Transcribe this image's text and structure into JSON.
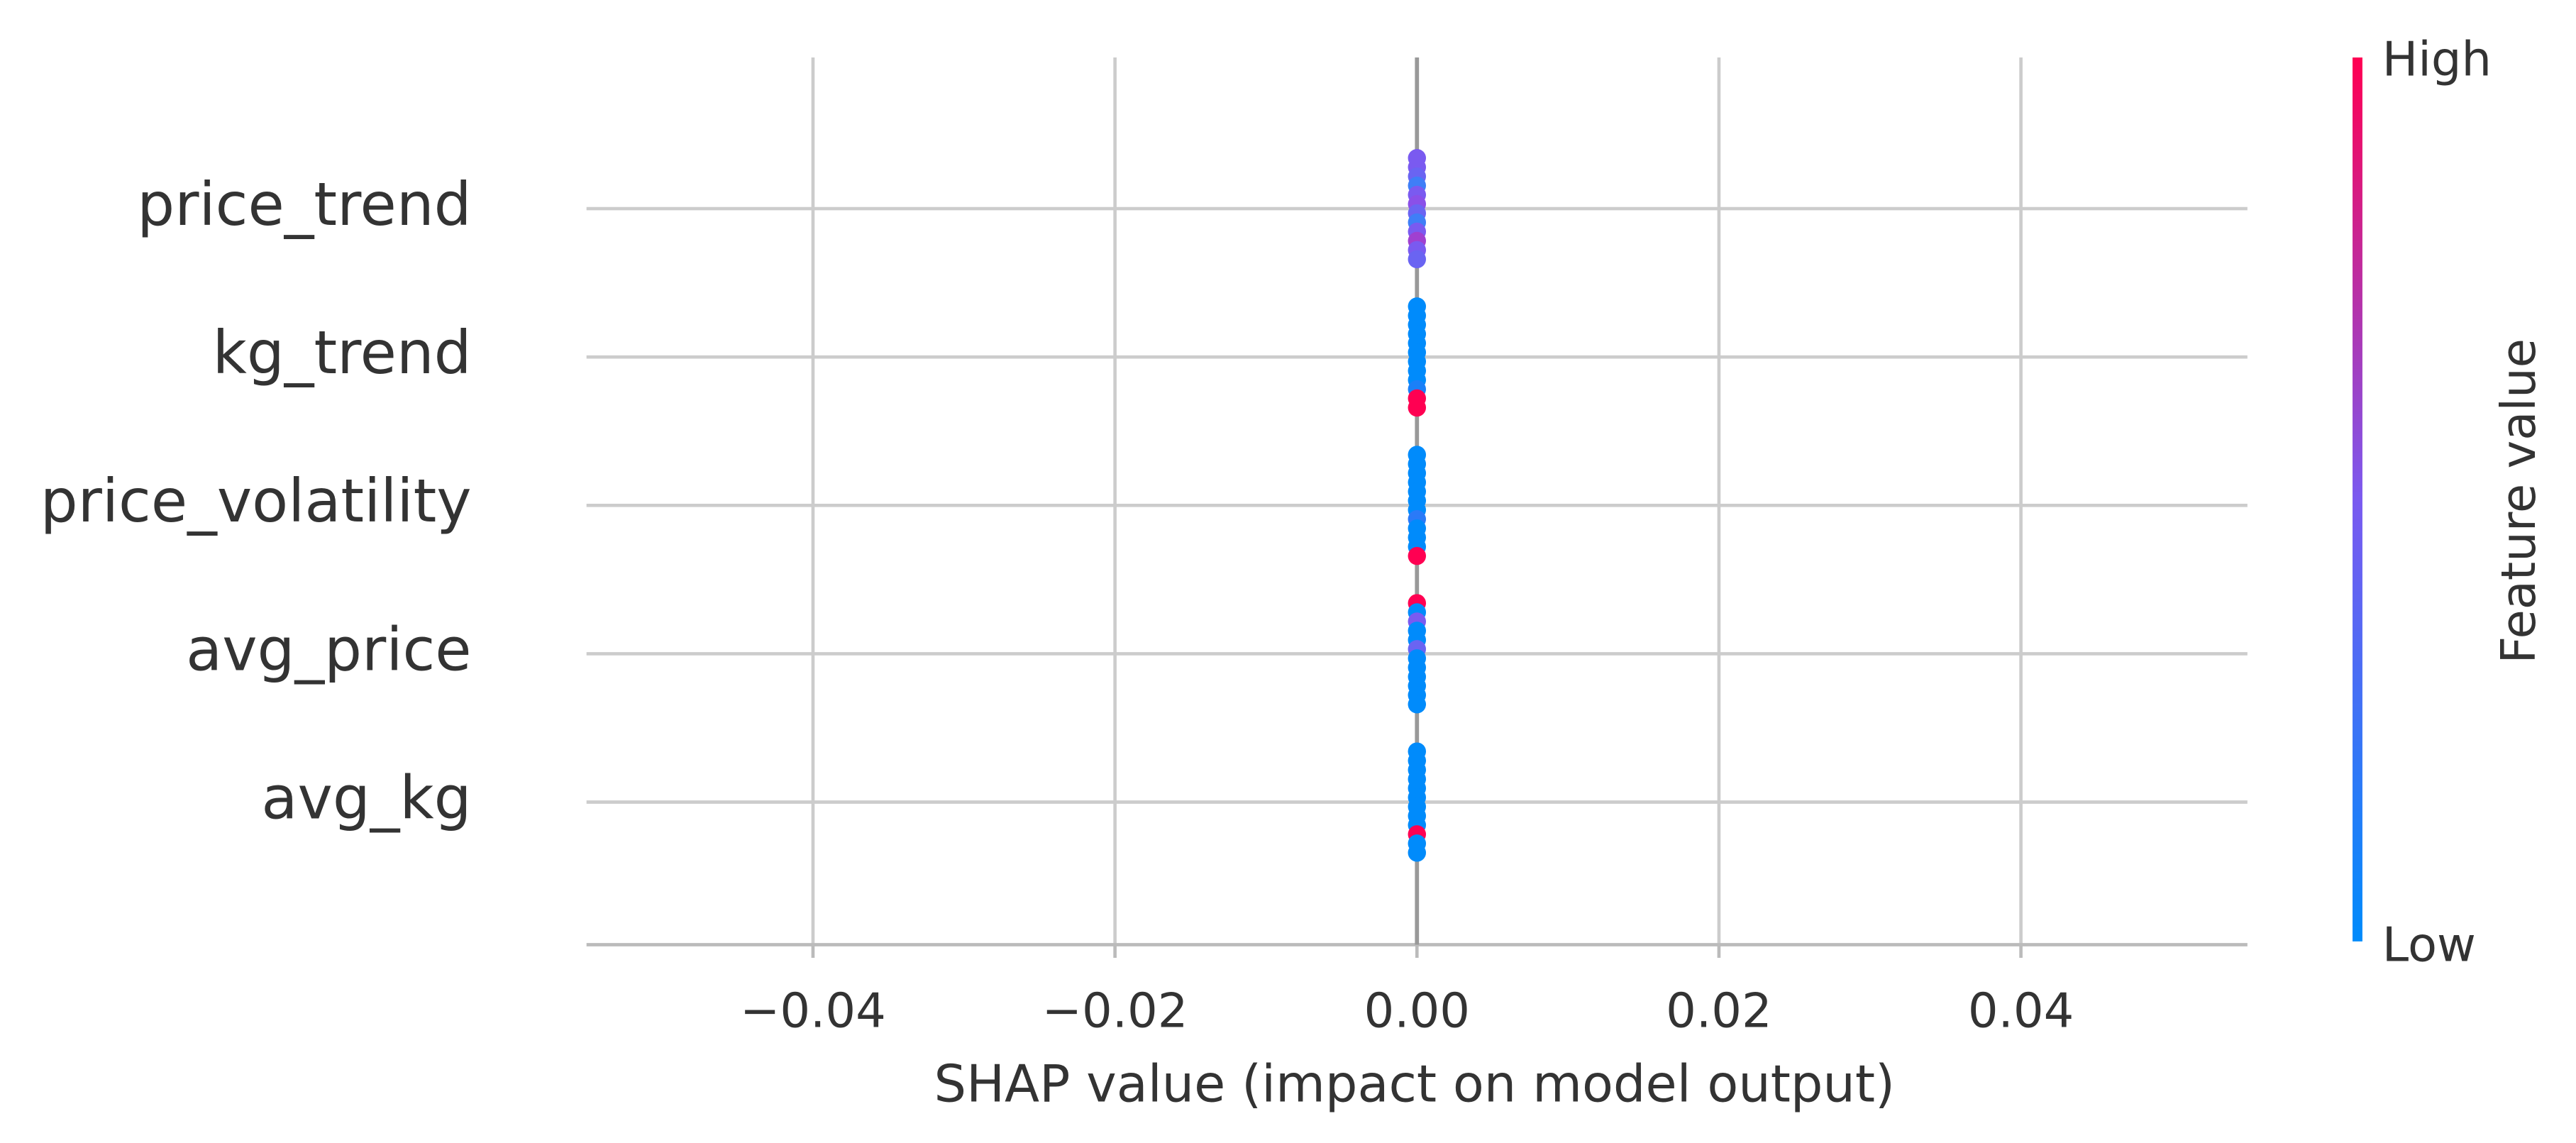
{
  "chart_data": {
    "type": "beeswarm",
    "xlabel": "SHAP value (impact on model output)",
    "categories": [
      "price_trend",
      "kg_trend",
      "price_volatility",
      "avg_price",
      "avg_kg"
    ],
    "points": [
      {
        "values": [
          0,
          0,
          0,
          0,
          0,
          0,
          0,
          0,
          0,
          0,
          0,
          0
        ],
        "colors": [
          "#7a5af0",
          "#7a5af0",
          "#6a64f2",
          "#3f7ef7",
          "#7a5af0",
          "#8a50e8",
          "#6a64f2",
          "#3f7ef7",
          "#7a5af0",
          "#a040d0",
          "#7a5af0",
          "#6a64f2"
        ]
      },
      {
        "values": [
          0,
          0,
          0,
          0,
          0,
          0,
          0,
          0,
          0,
          0,
          0,
          0
        ],
        "colors": [
          "#008bfb",
          "#008bfb",
          "#008bfb",
          "#008bfb",
          "#008bfb",
          "#008bfb",
          "#008bfb",
          "#008bfb",
          "#008bfb",
          "#1a80f8",
          "#ff0052",
          "#ff0052"
        ]
      },
      {
        "values": [
          0,
          0,
          0,
          0,
          0,
          0,
          0,
          0,
          0,
          0,
          0,
          0
        ],
        "colors": [
          "#008bfb",
          "#008bfb",
          "#008bfb",
          "#008bfb",
          "#008bfb",
          "#008bfb",
          "#008bfb",
          "#2a7af8",
          "#008bfb",
          "#008bfb",
          "#008bfb",
          "#ff0052"
        ]
      },
      {
        "values": [
          0,
          0,
          0,
          0,
          0,
          0,
          0,
          0,
          0,
          0,
          0,
          0
        ],
        "colors": [
          "#ff0052",
          "#008bfb",
          "#7a5af0",
          "#008bfb",
          "#008bfb",
          "#6a64f2",
          "#008bfb",
          "#008bfb",
          "#008bfb",
          "#008bfb",
          "#008bfb",
          "#008bfb"
        ]
      },
      {
        "values": [
          0,
          0,
          0,
          0,
          0,
          0,
          0,
          0,
          0,
          0,
          0,
          0
        ],
        "colors": [
          "#008bfb",
          "#008bfb",
          "#008bfb",
          "#008bfb",
          "#008bfb",
          "#008bfb",
          "#008bfb",
          "#008bfb",
          "#008bfb",
          "#ff0052",
          "#008bfb",
          "#008bfb"
        ]
      }
    ],
    "xlim": [
      -0.055,
      0.055
    ],
    "xticks": [
      {
        "value": -0.04,
        "label": "−0.04"
      },
      {
        "value": -0.02,
        "label": "−0.02"
      },
      {
        "value": 0,
        "label": "0.00"
      },
      0.02,
      0.04
    ],
    "grid": true,
    "colorbar": {
      "label": "Feature value",
      "high_label": "High",
      "low_label": "Low",
      "high_color": "#ff0052",
      "mid_color": "#7a5af0",
      "low_color": "#008bfb"
    }
  }
}
